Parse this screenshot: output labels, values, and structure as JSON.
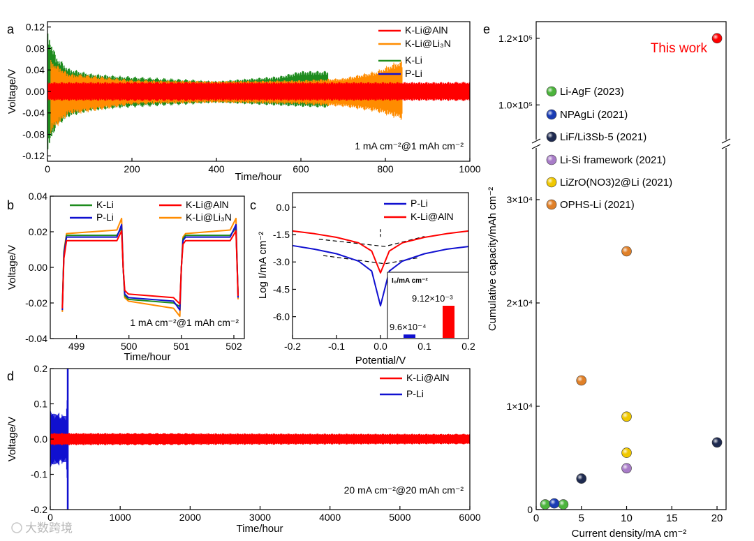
{
  "chart_data": [
    {
      "panel": "a",
      "type": "line",
      "xlabel": "Time/hour",
      "ylabel": "Voltage/V",
      "xlim": [
        0,
        1000
      ],
      "ylim": [
        -0.13,
        0.13
      ],
      "xticks": [
        "0",
        "200",
        "400",
        "600",
        "800",
        "1000"
      ],
      "yticks": [
        "-0.12",
        "-0.08",
        "-0.04",
        "0.00",
        "0.04",
        "0.08",
        "0.12"
      ],
      "annotation": "1 mA cm⁻²@1 mAh cm⁻²",
      "series": [
        {
          "name": "K-Li@AlN",
          "color": "#ff0000",
          "envelope_x": [
            0,
            1000
          ],
          "upper": [
            0.018,
            0.018
          ],
          "lower": [
            -0.018,
            -0.018
          ]
        },
        {
          "name": "K-Li@Li₃N",
          "color": "#ff8c00",
          "envelope_x": [
            8,
            50,
            200,
            400,
            600,
            700,
            780,
            820,
            840
          ],
          "upper": [
            0.06,
            0.035,
            0.022,
            0.02,
            0.022,
            0.026,
            0.04,
            0.055,
            0.06
          ],
          "lower": [
            -0.08,
            -0.045,
            -0.025,
            -0.022,
            -0.025,
            -0.03,
            -0.04,
            -0.05,
            -0.055
          ]
        },
        {
          "name": "K-Li",
          "color": "#1e8c1e",
          "envelope_x": [
            0,
            20,
            50,
            100,
            200,
            400,
            550,
            600,
            665
          ],
          "upper": [
            0.12,
            0.07,
            0.045,
            0.035,
            0.028,
            0.02,
            0.03,
            0.04,
            0.04
          ],
          "lower": [
            -0.12,
            -0.07,
            -0.05,
            -0.038,
            -0.03,
            -0.022,
            -0.028,
            -0.03,
            -0.032
          ]
        },
        {
          "name": "P-Li",
          "color": "#1010d0",
          "envelope_x": [],
          "upper": [],
          "lower": []
        }
      ]
    },
    {
      "panel": "b",
      "type": "line",
      "xlabel": "Time/hour",
      "ylabel": "Voltage/V",
      "xlim": [
        498.5,
        502.2
      ],
      "ylim": [
        -0.04,
        0.04
      ],
      "xticks": [
        "499",
        "500",
        "501",
        "502"
      ],
      "yticks": [
        "-0.04",
        "-0.02",
        "0.00",
        "0.02",
        "0.04"
      ],
      "annotation": "1 mA cm⁻²@1 mAh cm⁻²",
      "series": [
        {
          "name": "K-Li",
          "color": "#1e8c1e",
          "plateau": 0.018
        },
        {
          "name": "K-Li@AlN",
          "color": "#ff0000",
          "plateau": 0.015
        },
        {
          "name": "P-Li",
          "color": "#1010d0",
          "plateau": 0.017
        },
        {
          "name": "K-Li@Li₃N",
          "color": "#ff8c00",
          "plateau": 0.019
        }
      ]
    },
    {
      "panel": "c",
      "type": "line",
      "xlabel": "Potential/V",
      "ylabel": "Log I/mA cm⁻²",
      "xlim": [
        -0.2,
        0.2
      ],
      "ylim": [
        -7.2,
        0.8
      ],
      "xticks": [
        "-0.2",
        "-0.1",
        "0.0",
        "0.1",
        "0.2"
      ],
      "yticks": [
        "0.0",
        "-1.5",
        "-3.0",
        "-4.5",
        "-6.0"
      ],
      "series": [
        {
          "name": "P-Li",
          "color": "#1010d0",
          "x": [
            -0.2,
            -0.15,
            -0.1,
            -0.05,
            -0.02,
            0.0,
            0.02,
            0.05,
            0.1,
            0.15,
            0.2
          ],
          "y": [
            -2.1,
            -2.3,
            -2.55,
            -2.95,
            -3.5,
            -5.4,
            -3.5,
            -2.95,
            -2.55,
            -2.3,
            -2.15
          ]
        },
        {
          "name": "K-Li@AlN",
          "color": "#ff0000",
          "x": [
            -0.2,
            -0.15,
            -0.1,
            -0.05,
            -0.02,
            0.0,
            0.02,
            0.05,
            0.1,
            0.15,
            0.2
          ],
          "y": [
            -1.3,
            -1.45,
            -1.65,
            -1.95,
            -2.4,
            -3.6,
            -2.4,
            -1.95,
            -1.65,
            -1.45,
            -1.3
          ]
        }
      ],
      "inset": {
        "title": "I₀/mA cm⁻²",
        "categories": [
          "P-Li",
          "K-Li@AlN"
        ],
        "values": [
          0.00096,
          0.00912
        ],
        "labels": [
          "9.6×10⁻⁴",
          "9.12×10⁻³"
        ],
        "colors": [
          "#1010d0",
          "#ff0000"
        ]
      }
    },
    {
      "panel": "d",
      "type": "line",
      "xlabel": "Time/hour",
      "ylabel": "Voltage/V",
      "xlim": [
        0,
        6000
      ],
      "ylim": [
        -0.2,
        0.2
      ],
      "xticks": [
        "0",
        "1000",
        "2000",
        "3000",
        "4000",
        "5000",
        "6000"
      ],
      "yticks": [
        "-0.2",
        "-0.1",
        "0.0",
        "0.1",
        "0.2"
      ],
      "annotation": "20 mA cm⁻²@20 mAh cm⁻²",
      "series": [
        {
          "name": "K-Li@AlN",
          "color": "#ff0000",
          "envelope_x": [
            0,
            6000
          ],
          "upper": [
            0.018,
            0.015
          ],
          "lower": [
            -0.018,
            -0.015
          ]
        },
        {
          "name": "P-Li",
          "color": "#1010d0",
          "envelope_x": [
            0,
            230,
            250
          ],
          "upper": [
            0.08,
            0.07,
            0.2
          ],
          "lower": [
            -0.08,
            -0.07,
            -0.2
          ]
        }
      ]
    },
    {
      "panel": "e",
      "type": "scatter",
      "xlabel": "Current density/mA cm⁻²",
      "ylabel": "Cumulative capacity/mAh cm⁻²",
      "xlim": [
        0,
        21
      ],
      "xticks": [
        "0",
        "5",
        "10",
        "15",
        "20"
      ],
      "yticks_lower": [
        "0",
        "1×10⁴",
        "2×10⁴",
        "3×10⁴"
      ],
      "yticks_upper": [
        "1.0×10⁵",
        "1.2×10⁵"
      ],
      "highlight_label": "This work",
      "series": [
        {
          "name": "This work",
          "color": "#ff0000",
          "points": [
            [
              20,
              120000
            ]
          ]
        },
        {
          "name": "Li-AgF (2023)",
          "color": "#4cb43c",
          "points": [
            [
              1,
              500
            ],
            [
              3,
              500
            ]
          ]
        },
        {
          "name": "NPAgLi (2021)",
          "color": "#1a3cb4",
          "points": [
            [
              2,
              600
            ]
          ]
        },
        {
          "name": "LiF/Li3Sb-5 (2021)",
          "color": "#1e2a50",
          "points": [
            [
              5,
              3000
            ],
            [
              20,
              6500
            ]
          ]
        },
        {
          "name": "Li-Si framework (2021)",
          "color": "#a87cc8",
          "points": [
            [
              10,
              4000
            ]
          ]
        },
        {
          "name": "LiZrO(NO3)2@Li (2021)",
          "color": "#f0c800",
          "points": [
            [
              10,
              5500
            ],
            [
              10,
              9000
            ]
          ]
        },
        {
          "name": "OPHS-Li (2021)",
          "color": "#e08028",
          "points": [
            [
              5,
              12500
            ],
            [
              10,
              25000
            ]
          ]
        }
      ]
    }
  ],
  "panel_letters": [
    "a",
    "b",
    "c",
    "d",
    "e"
  ],
  "watermark": "大数跨境"
}
